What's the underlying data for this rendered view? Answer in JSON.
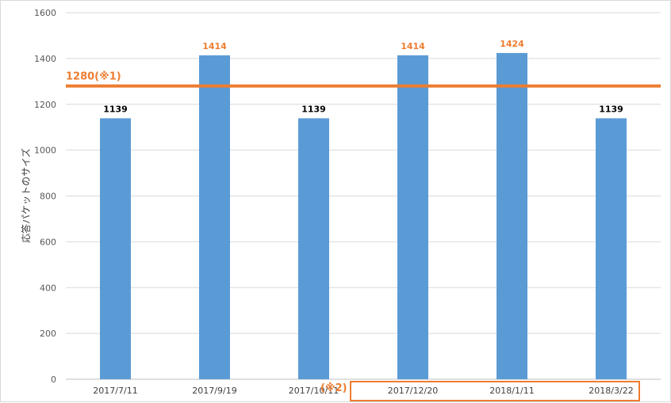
{
  "chart_data": {
    "type": "bar",
    "title": "",
    "xlabel": "",
    "ylabel": "応答パケットのサイズ",
    "ylim": [
      0,
      1600
    ],
    "yticks": [
      0,
      200,
      400,
      600,
      800,
      1000,
      1200,
      1400,
      1600
    ],
    "grid": true,
    "categories": [
      "2017/7/11",
      "2017/9/19",
      "2017/10/11",
      "2017/12/20",
      "2018/1/11",
      "2018/3/22"
    ],
    "values": [
      1139,
      1414,
      1139,
      1414,
      1424,
      1139
    ],
    "data_labels": [
      "1139",
      "1414",
      "1139",
      "1414",
      "1424",
      "1139"
    ],
    "highlighted_labels": [
      false,
      true,
      false,
      true,
      true,
      false
    ],
    "reference_line": {
      "value": 1280,
      "label": "1280(※1)"
    },
    "group_annotation": {
      "label": "(※2)",
      "categories": [
        "2017/12/20",
        "2018/1/11",
        "2018/3/22"
      ]
    },
    "colors": {
      "bar": "#5b9bd5",
      "accent": "#ed7d31",
      "grid": "#d9d9d9",
      "label": "#000000"
    }
  }
}
